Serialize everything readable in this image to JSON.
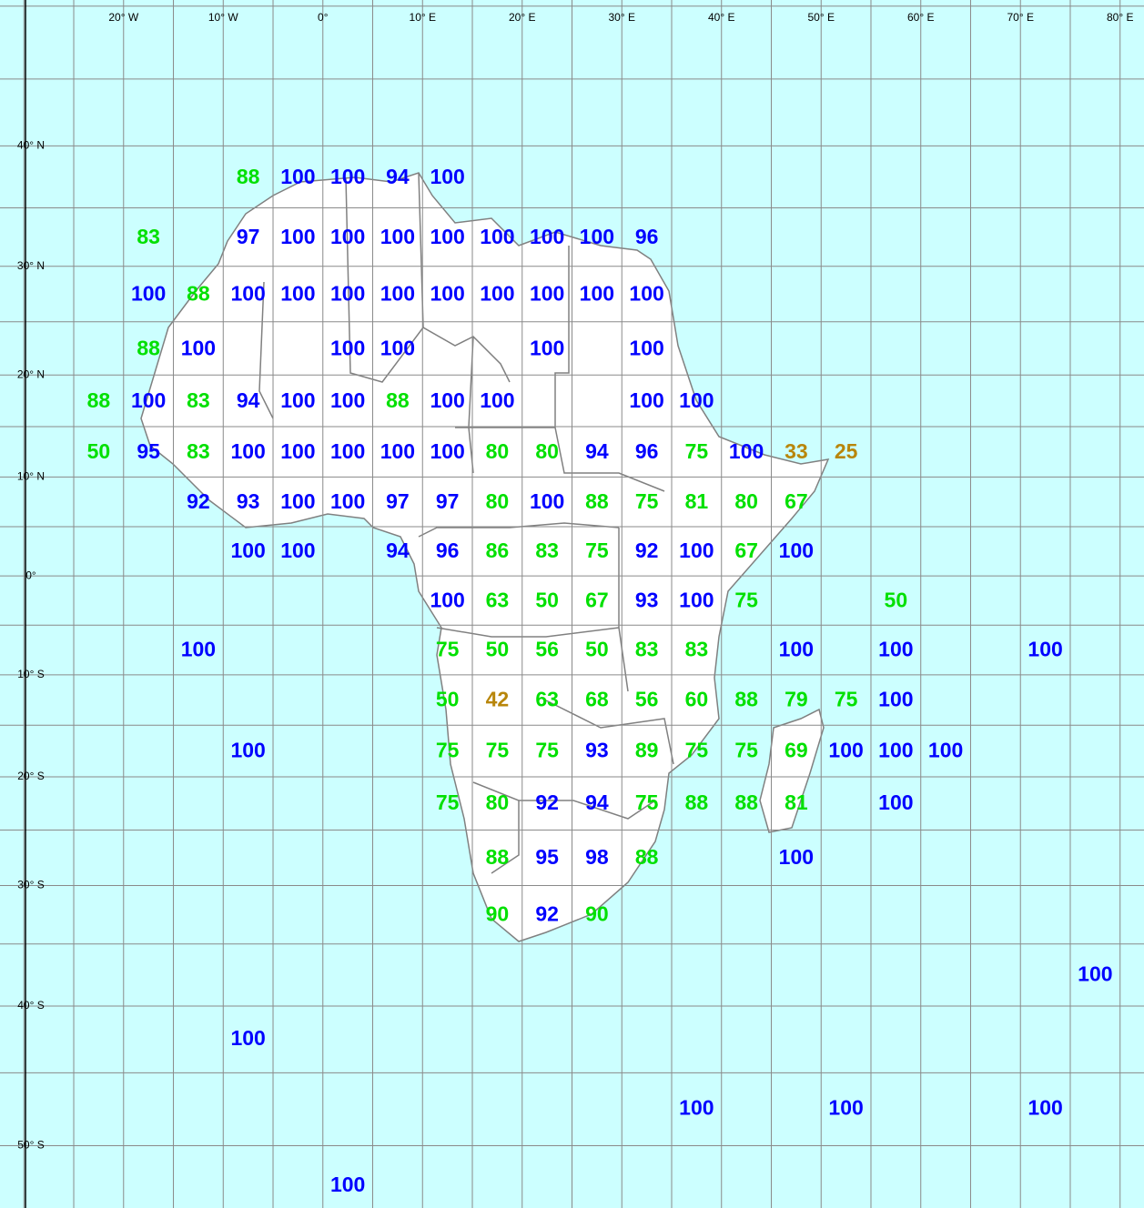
{
  "chart_data": {
    "type": "grid-map",
    "xlim": [
      -32.4,
      82.4
    ],
    "ylim": [
      -53.9,
      50.4
    ],
    "grid": true,
    "grid_step": 5,
    "xticks": [
      {
        "value": -20,
        "label": "20° W"
      },
      {
        "value": -10,
        "label": "10° W"
      },
      {
        "value": 0,
        "label": "0°"
      },
      {
        "value": 10,
        "label": "10° E"
      },
      {
        "value": 20,
        "label": "20° E"
      },
      {
        "value": 30,
        "label": "30° E"
      },
      {
        "value": 40,
        "label": "40° E"
      },
      {
        "value": 50,
        "label": "50° E"
      },
      {
        "value": 60,
        "label": "60° E"
      },
      {
        "value": 70,
        "label": "70° E"
      },
      {
        "value": 80,
        "label": "80° E"
      }
    ],
    "yticks": [
      {
        "value": 40,
        "label": "40° N"
      },
      {
        "value": 30,
        "label": "30° N"
      },
      {
        "value": 20,
        "label": "20° N"
      },
      {
        "value": 10,
        "label": "10° N"
      },
      {
        "value": 0,
        "label": "0°"
      },
      {
        "value": -10,
        "label": "10° S"
      },
      {
        "value": -20,
        "label": "20° S"
      },
      {
        "value": -30,
        "label": "30° S"
      },
      {
        "value": -40,
        "label": "40° S"
      },
      {
        "value": -50,
        "label": "50° S"
      }
    ],
    "series": [
      {
        "color": "#0000ff",
        "points": [
          [
            -2.5,
            37.5,
            100
          ],
          [
            2.5,
            37.5,
            100
          ],
          [
            7.5,
            37.5,
            94
          ],
          [
            12.5,
            37.5,
            100
          ],
          [
            -7.5,
            32.5,
            97
          ],
          [
            -2.5,
            32.5,
            100
          ],
          [
            2.5,
            32.5,
            100
          ],
          [
            7.5,
            32.5,
            100
          ],
          [
            12.5,
            32.5,
            100
          ],
          [
            17.5,
            32.5,
            100
          ],
          [
            22.5,
            32.5,
            100
          ],
          [
            27.5,
            32.5,
            100
          ],
          [
            32.5,
            32.5,
            96
          ],
          [
            -17.5,
            27.5,
            100
          ],
          [
            -7.5,
            27.5,
            100
          ],
          [
            -2.5,
            27.5,
            100
          ],
          [
            2.5,
            27.5,
            100
          ],
          [
            7.5,
            27.5,
            100
          ],
          [
            12.5,
            27.5,
            100
          ],
          [
            17.5,
            27.5,
            100
          ],
          [
            22.5,
            27.5,
            100
          ],
          [
            27.5,
            27.5,
            100
          ],
          [
            32.5,
            27.5,
            100
          ],
          [
            -12.5,
            22.5,
            100
          ],
          [
            2.5,
            22.5,
            100
          ],
          [
            7.5,
            22.5,
            100
          ],
          [
            22.5,
            22.5,
            100
          ],
          [
            32.5,
            22.5,
            100
          ],
          [
            -17.5,
            17.5,
            100
          ],
          [
            -7.5,
            17.5,
            94
          ],
          [
            -2.5,
            17.5,
            100
          ],
          [
            2.5,
            17.5,
            100
          ],
          [
            12.5,
            17.5,
            100
          ],
          [
            17.5,
            17.5,
            100
          ],
          [
            32.5,
            17.5,
            100
          ],
          [
            37.5,
            17.5,
            100
          ],
          [
            -17.5,
            12.5,
            95
          ],
          [
            -7.5,
            12.5,
            100
          ],
          [
            -2.5,
            12.5,
            100
          ],
          [
            2.5,
            12.5,
            100
          ],
          [
            7.5,
            12.5,
            100
          ],
          [
            12.5,
            12.5,
            100
          ],
          [
            27.5,
            12.5,
            94
          ],
          [
            32.5,
            12.5,
            96
          ],
          [
            42.5,
            12.5,
            100
          ],
          [
            -12.5,
            7.5,
            92
          ],
          [
            -7.5,
            7.5,
            93
          ],
          [
            -2.5,
            7.5,
            100
          ],
          [
            2.5,
            7.5,
            100
          ],
          [
            7.5,
            7.5,
            97
          ],
          [
            12.5,
            7.5,
            97
          ],
          [
            22.5,
            7.5,
            100
          ],
          [
            -7.5,
            2.5,
            100
          ],
          [
            -2.5,
            2.5,
            100
          ],
          [
            7.5,
            2.5,
            94
          ],
          [
            12.5,
            2.5,
            96
          ],
          [
            32.5,
            2.5,
            92
          ],
          [
            37.5,
            2.5,
            100
          ],
          [
            47.5,
            2.5,
            100
          ],
          [
            12.5,
            -2.5,
            100
          ],
          [
            32.5,
            -2.5,
            93
          ],
          [
            37.5,
            -2.5,
            100
          ],
          [
            -12.5,
            -7.5,
            100
          ],
          [
            47.5,
            -7.5,
            100
          ],
          [
            57.5,
            -7.5,
            100
          ],
          [
            72.5,
            -7.5,
            100
          ],
          [
            57.5,
            -12.5,
            100
          ],
          [
            -7.5,
            -17.5,
            100
          ],
          [
            27.5,
            -17.5,
            93
          ],
          [
            52.5,
            -17.5,
            100
          ],
          [
            57.5,
            -17.5,
            100
          ],
          [
            62.5,
            -17.5,
            100
          ],
          [
            22.5,
            -22.5,
            92
          ],
          [
            27.5,
            -22.5,
            94
          ],
          [
            57.5,
            -22.5,
            100
          ],
          [
            22.5,
            -27.5,
            95
          ],
          [
            27.5,
            -27.5,
            98
          ],
          [
            47.5,
            -27.5,
            100
          ],
          [
            22.5,
            -32.5,
            92
          ],
          [
            77.5,
            -37.5,
            100
          ],
          [
            -7.5,
            -42.5,
            100
          ],
          [
            37.5,
            -47.5,
            100
          ],
          [
            52.5,
            -47.5,
            100
          ],
          [
            72.5,
            -47.5,
            100
          ],
          [
            2.5,
            -52.5,
            100
          ]
        ]
      },
      {
        "color": "#00e000",
        "points": [
          [
            -7.5,
            37.5,
            88
          ],
          [
            -17.5,
            32.5,
            83
          ],
          [
            -12.5,
            27.5,
            88
          ],
          [
            -17.5,
            22.5,
            88
          ],
          [
            -22.5,
            17.5,
            88
          ],
          [
            -12.5,
            17.5,
            83
          ],
          [
            7.5,
            17.5,
            88
          ],
          [
            -22.5,
            12.5,
            50
          ],
          [
            -12.5,
            12.5,
            83
          ],
          [
            17.5,
            12.5,
            80
          ],
          [
            22.5,
            12.5,
            80
          ],
          [
            37.5,
            12.5,
            75
          ],
          [
            17.5,
            7.5,
            80
          ],
          [
            27.5,
            7.5,
            88
          ],
          [
            32.5,
            7.5,
            75
          ],
          [
            37.5,
            7.5,
            81
          ],
          [
            42.5,
            7.5,
            80
          ],
          [
            47.5,
            7.5,
            67
          ],
          [
            17.5,
            2.5,
            86
          ],
          [
            22.5,
            2.5,
            83
          ],
          [
            27.5,
            2.5,
            75
          ],
          [
            42.5,
            2.5,
            67
          ],
          [
            17.5,
            -2.5,
            63
          ],
          [
            22.5,
            -2.5,
            50
          ],
          [
            27.5,
            -2.5,
            67
          ],
          [
            42.5,
            -2.5,
            75
          ],
          [
            57.5,
            -2.5,
            50
          ],
          [
            12.5,
            -7.5,
            75
          ],
          [
            17.5,
            -7.5,
            50
          ],
          [
            22.5,
            -7.5,
            56
          ],
          [
            27.5,
            -7.5,
            50
          ],
          [
            32.5,
            -7.5,
            83
          ],
          [
            37.5,
            -7.5,
            83
          ],
          [
            12.5,
            -12.5,
            50
          ],
          [
            22.5,
            -12.5,
            63
          ],
          [
            27.5,
            -12.5,
            68
          ],
          [
            32.5,
            -12.5,
            56
          ],
          [
            37.5,
            -12.5,
            60
          ],
          [
            42.5,
            -12.5,
            88
          ],
          [
            47.5,
            -12.5,
            79
          ],
          [
            52.5,
            -12.5,
            75
          ],
          [
            12.5,
            -17.5,
            75
          ],
          [
            17.5,
            -17.5,
            75
          ],
          [
            22.5,
            -17.5,
            75
          ],
          [
            32.5,
            -17.5,
            89
          ],
          [
            37.5,
            -17.5,
            75
          ],
          [
            42.5,
            -17.5,
            75
          ],
          [
            47.5,
            -17.5,
            69
          ],
          [
            12.5,
            -22.5,
            75
          ],
          [
            17.5,
            -22.5,
            80
          ],
          [
            32.5,
            -22.5,
            75
          ],
          [
            37.5,
            -22.5,
            88
          ],
          [
            42.5,
            -22.5,
            88
          ],
          [
            47.5,
            -22.5,
            81
          ],
          [
            17.5,
            -27.5,
            88
          ],
          [
            32.5,
            -27.5,
            88
          ],
          [
            17.5,
            -32.5,
            90
          ],
          [
            27.5,
            -32.5,
            90
          ]
        ]
      },
      {
        "color": "#b8860b",
        "points": [
          [
            47.5,
            12.5,
            33
          ],
          [
            52.5,
            12.5,
            25
          ],
          [
            17.5,
            -12.5,
            42
          ]
        ]
      }
    ]
  }
}
